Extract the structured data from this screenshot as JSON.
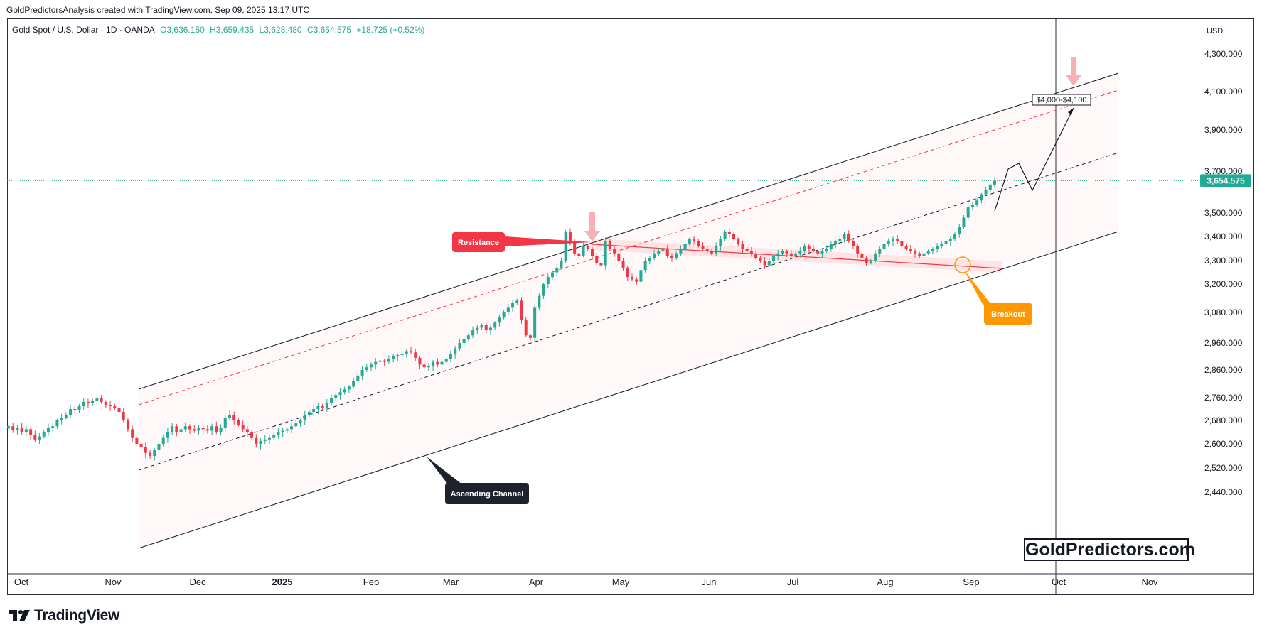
{
  "header": {
    "credit": "GoldPredictorsAnalysis created with TradingView.com, Sep 09, 2025 13:17 UTC"
  },
  "symbol": {
    "name": "Gold Spot / U.S. Dollar · 1D · OANDA",
    "open": "O3,636.150",
    "high": "H3,659.435",
    "low": "L3,628.480",
    "close": "C3,654.575",
    "change": "+18.725 (+0.52%)"
  },
  "footer": {
    "brand": "TradingView"
  },
  "watermark": "GoldPredictors.com",
  "colors": {
    "up": "#22ab94",
    "down": "#f23645",
    "resistance": "#f23645",
    "breakout": "#ff9800",
    "channel_label": "#1e222d",
    "price_tag": "#22ab94"
  },
  "chart_data": {
    "type": "candlestick",
    "currency": "USD",
    "last_price": 3654.575,
    "last_price_label": "3,654.575",
    "y_ticks": [
      "4,300.000",
      "4,100.000",
      "3,900.000",
      "3,700.000",
      "3,500.000",
      "3,400.000",
      "3,300.000",
      "3,200.000",
      "3,080.000",
      "2,960.000",
      "2,860.000",
      "2,760.000",
      "2,680.000",
      "2,600.000",
      "2,520.000",
      "2,440.000"
    ],
    "x_ticks": [
      "Oct",
      "Nov",
      "Dec",
      "2025",
      "Feb",
      "Mar",
      "Apr",
      "May",
      "Jun",
      "Jul",
      "Aug",
      "Sep",
      "Oct",
      "Nov"
    ],
    "x_tick_bold": "2025",
    "annotations": {
      "resistance": "Resistance",
      "breakout": "Breakout",
      "channel": "Ascending Channel",
      "target": "$4,000-$4,100"
    },
    "closes": [
      2660,
      2648,
      2655,
      2640,
      2650,
      2630,
      2615,
      2625,
      2640,
      2655,
      2660,
      2680,
      2690,
      2700,
      2720,
      2715,
      2730,
      2745,
      2740,
      2750,
      2760,
      2745,
      2735,
      2730,
      2725,
      2710,
      2680,
      2650,
      2620,
      2600,
      2590,
      2570,
      2560,
      2580,
      2600,
      2620,
      2640,
      2660,
      2640,
      2650,
      2660,
      2650,
      2645,
      2655,
      2650,
      2645,
      2660,
      2640,
      2655,
      2690,
      2700,
      2680,
      2665,
      2650,
      2640,
      2620,
      2600,
      2610,
      2615,
      2620,
      2630,
      2640,
      2645,
      2650,
      2660,
      2670,
      2680,
      2700,
      2710,
      2720,
      2730,
      2725,
      2740,
      2760,
      2770,
      2780,
      2790,
      2800,
      2820,
      2840,
      2860,
      2870,
      2880,
      2890,
      2895,
      2890,
      2900,
      2910,
      2915,
      2920,
      2930,
      2925,
      2905,
      2880,
      2870,
      2875,
      2890,
      2880,
      2890,
      2900,
      2920,
      2940,
      2960,
      2975,
      2990,
      3010,
      3020,
      3030,
      3010,
      3020,
      3040,
      3060,
      3080,
      3100,
      3120,
      3130,
      3050,
      2990,
      2980,
      3100,
      3150,
      3200,
      3230,
      3250,
      3270,
      3300,
      3420,
      3380,
      3330,
      3320,
      3360,
      3350,
      3320,
      3290,
      3280,
      3380,
      3350,
      3330,
      3300,
      3270,
      3230,
      3220,
      3210,
      3260,
      3300,
      3310,
      3330,
      3340,
      3350,
      3320,
      3310,
      3330,
      3350,
      3370,
      3390,
      3380,
      3360,
      3350,
      3340,
      3330,
      3360,
      3390,
      3420,
      3410,
      3390,
      3370,
      3350,
      3340,
      3330,
      3310,
      3300,
      3280,
      3300,
      3320,
      3330,
      3340,
      3330,
      3320,
      3330,
      3340,
      3360,
      3350,
      3340,
      3330,
      3340,
      3350,
      3370,
      3380,
      3390,
      3410,
      3380,
      3360,
      3330,
      3310,
      3290,
      3300,
      3330,
      3350,
      3370,
      3380,
      3390,
      3380,
      3360,
      3350,
      3340,
      3330,
      3320,
      3330,
      3340,
      3350,
      3360,
      3370,
      3380,
      3390,
      3410,
      3440,
      3480,
      3530,
      3540,
      3560,
      3590,
      3610,
      3636,
      3654.575
    ]
  }
}
